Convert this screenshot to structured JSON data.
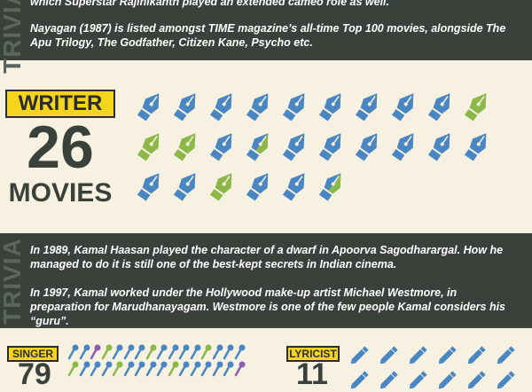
{
  "trivia_top": {
    "label": "TRIVIA",
    "line_partial": "which Superstar Rajinikanth played an extended cameo role as well.",
    "paragraph": "Nayagan (1987) is listed amongst TIME magazine’s all-time Top 100 movies, alongside The Apu Trilogy, The Godfather, Citizen Kane, Psycho etc."
  },
  "writer": {
    "tag": "WRITER",
    "count": "26",
    "unit": "MOVIES",
    "icon": "fountain-pen-icon",
    "pens": [
      "blue",
      "blue",
      "blue",
      "blue",
      "blue",
      "blue",
      "blue",
      "blue",
      "blue",
      "green",
      "green",
      "green",
      "blue",
      "split",
      "blue",
      "blue",
      "blue",
      "blue",
      "blue",
      "blue",
      "blue",
      "blue",
      "green",
      "blue",
      "blue",
      "split"
    ]
  },
  "trivia_mid": {
    "label": "TRIVIA",
    "paragraph1": "In 1989, Kamal Haasan played the character of a dwarf in Apoorva Sagodharargal. How he managed to do it is still one of the best-kept secrets in Indian cinema.",
    "paragraph2": "In 1997, Kamal worked under the Hollywood make-up artist Michael Westmore, in preparation for Marudhanayagam. Westmore is one of the few people Kamal considers his “guru”."
  },
  "singer": {
    "tag": "SINGER",
    "count": "79",
    "icon": "microphone-icon"
  },
  "lyricist": {
    "tag": "LYRICIST",
    "count": "11",
    "icon": "pencil-icon"
  },
  "colors": {
    "dark_band": "#3a413a",
    "background": "#f6f1e1",
    "tag_yellow": "#f4d41c",
    "pen_blue": "#4a86c2",
    "pen_green": "#8cb84a",
    "mic_purple": "#8a5fb0"
  }
}
